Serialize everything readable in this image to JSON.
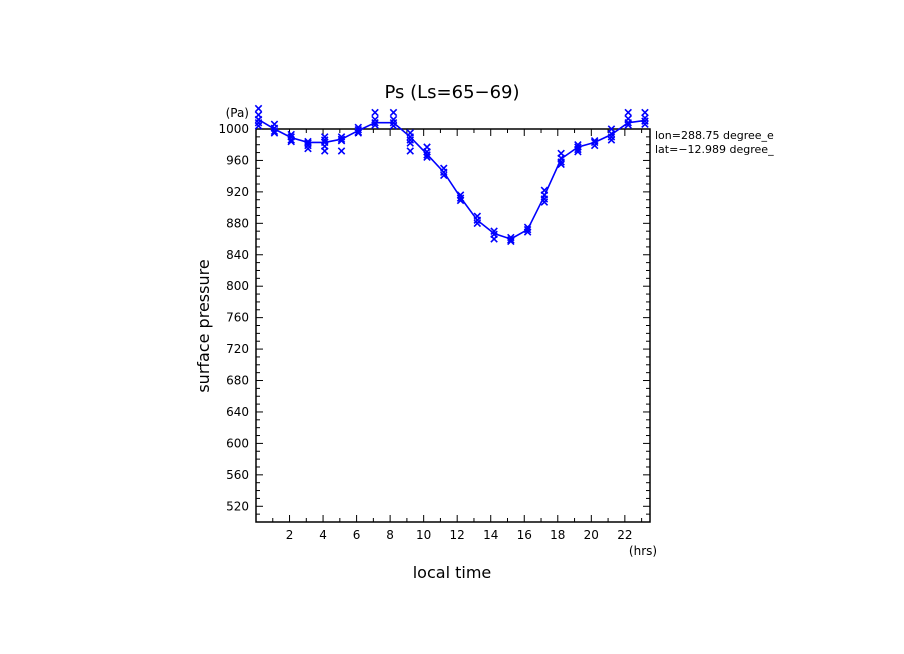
{
  "chart_data": {
    "type": "line",
    "title": "Ps (Ls=65−69)",
    "xlabel": "local time",
    "ylabel": "surface pressure",
    "x_unit": "(hrs)",
    "y_unit": "(Pa)",
    "xlim": [
      0,
      23.5
    ],
    "ylim": [
      500,
      1000
    ],
    "x_ticks": [
      2,
      4,
      6,
      8,
      10,
      12,
      14,
      16,
      18,
      20,
      22
    ],
    "y_ticks": [
      520,
      560,
      600,
      640,
      680,
      720,
      760,
      800,
      840,
      880,
      920,
      960,
      1000
    ],
    "annotations": [
      "lon=288.75 degree_e",
      "lat=−12.989 degree_"
    ],
    "color": "#0000ff",
    "grid": false,
    "series": [
      {
        "style": "line",
        "x": [
          0.15,
          1.1,
          2.1,
          3.1,
          4.1,
          5.1,
          6.1,
          7.1,
          8.2,
          9.2,
          10.2,
          11.2,
          12.2,
          13.2,
          14.2,
          15.2,
          16.2,
          17.2,
          18.2,
          19.2,
          20.2,
          21.2,
          22.2,
          23.2
        ],
        "y": [
          1012,
          1000,
          989,
          983,
          983,
          987,
          998,
          1008,
          1008,
          990,
          968,
          945,
          913,
          884,
          867,
          860,
          872,
          915,
          962,
          977,
          983,
          993,
          1008,
          1011
        ]
      },
      {
        "style": "markers",
        "marker": "x",
        "x": [
          0.15,
          0.15,
          0.15,
          0.15,
          0.15,
          1.1,
          1.1,
          1.1,
          1.1,
          2.1,
          2.1,
          2.1,
          2.1,
          3.1,
          3.1,
          3.1,
          3.1,
          4.1,
          4.1,
          4.1,
          4.1,
          4.1,
          5.1,
          5.1,
          5.1,
          5.1,
          6.1,
          6.1,
          6.1,
          6.1,
          7.1,
          7.1,
          7.1,
          7.1,
          8.2,
          8.2,
          8.2,
          8.2,
          9.2,
          9.2,
          9.2,
          9.2,
          9.2,
          10.2,
          10.2,
          10.2,
          10.2,
          11.2,
          11.2,
          11.2,
          12.2,
          12.2,
          12.2,
          13.2,
          13.2,
          13.2,
          14.2,
          14.2,
          14.2,
          15.2,
          15.2,
          15.2,
          16.2,
          16.2,
          16.2,
          17.2,
          17.2,
          17.2,
          17.2,
          18.2,
          18.2,
          18.2,
          18.2,
          19.2,
          19.2,
          19.2,
          19.2,
          20.2,
          20.2,
          20.2,
          21.2,
          21.2,
          21.2,
          21.2,
          22.2,
          22.2,
          22.2,
          22.2,
          23.2,
          23.2,
          23.2,
          23.2
        ],
        "y": [
          1026,
          1018,
          1012,
          1008,
          1004,
          1006,
          1001,
          997,
          995,
          993,
          990,
          986,
          984,
          984,
          982,
          979,
          975,
          990,
          986,
          983,
          978,
          972,
          990,
          987,
          985,
          972,
          1002,
          999,
          996,
          995,
          1021,
          1012,
          1008,
          1005,
          1021,
          1012,
          1008,
          1004,
          995,
          990,
          986,
          982,
          972,
          977,
          971,
          967,
          964,
          950,
          945,
          941,
          916,
          912,
          909,
          889,
          884,
          880,
          870,
          866,
          860,
          862,
          859,
          857,
          875,
          872,
          869,
          922,
          916,
          911,
          907,
          969,
          963,
          958,
          955,
          980,
          977,
          974,
          971,
          985,
          983,
          979,
          1000,
          994,
          990,
          986,
          1021,
          1013,
          1008,
          1005,
          1021,
          1014,
          1010,
          1006
        ]
      }
    ]
  }
}
